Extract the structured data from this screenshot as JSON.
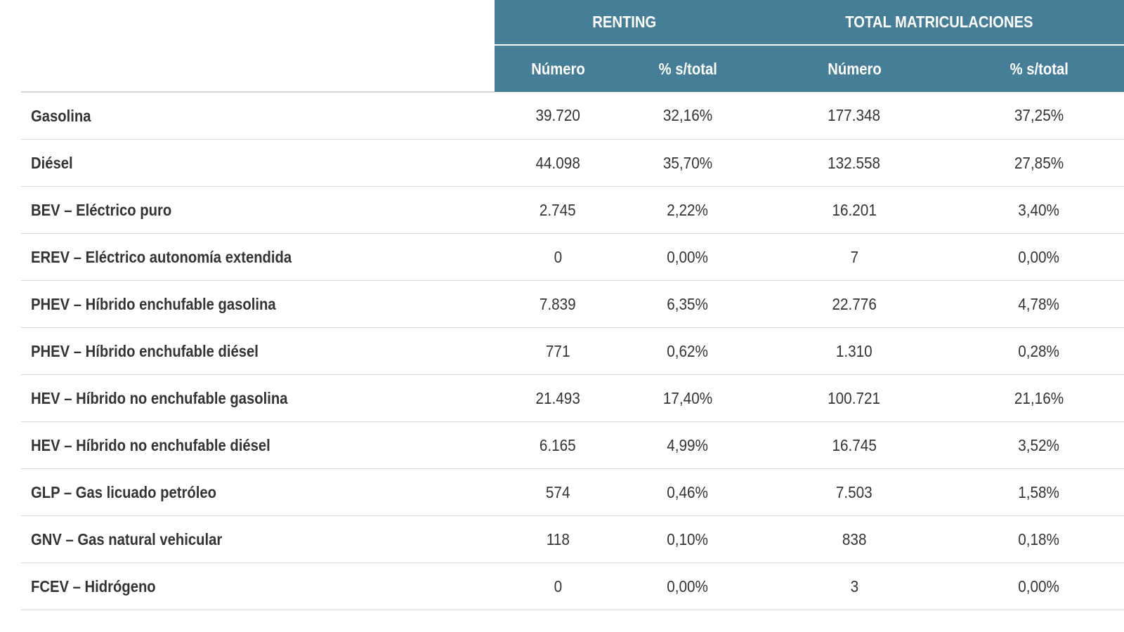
{
  "table": {
    "group_headers": {
      "renting": "RENTING",
      "total": "TOTAL MATRICULACIONES"
    },
    "sub_headers": {
      "renting_number": "Número",
      "renting_pct": "% s/total",
      "total_number": "Número",
      "total_pct": "% s/total"
    },
    "rows": [
      {
        "label": "Gasolina",
        "renting_number": "39.720",
        "renting_pct": "32,16%",
        "total_number": "177.348",
        "total_pct": "37,25%"
      },
      {
        "label": "Diésel",
        "renting_number": "44.098",
        "renting_pct": "35,70%",
        "total_number": "132.558",
        "total_pct": "27,85%"
      },
      {
        "label": "BEV – Eléctrico puro",
        "renting_number": "2.745",
        "renting_pct": "2,22%",
        "total_number": "16.201",
        "total_pct": "3,40%"
      },
      {
        "label": "EREV – Eléctrico autonomía extendida",
        "renting_number": "0",
        "renting_pct": "0,00%",
        "total_number": "7",
        "total_pct": "0,00%"
      },
      {
        "label": "PHEV – Híbrido enchufable gasolina",
        "renting_number": "7.839",
        "renting_pct": "6,35%",
        "total_number": "22.776",
        "total_pct": "4,78%"
      },
      {
        "label": "PHEV – Híbrido enchufable diésel",
        "renting_number": "771",
        "renting_pct": "0,62%",
        "total_number": "1.310",
        "total_pct": "0,28%"
      },
      {
        "label": "HEV – Híbrido no enchufable gasolina",
        "renting_number": "21.493",
        "renting_pct": "17,40%",
        "total_number": "100.721",
        "total_pct": "21,16%"
      },
      {
        "label": "HEV – Híbrido no enchufable diésel",
        "renting_number": "6.165",
        "renting_pct": "4,99%",
        "total_number": "16.745",
        "total_pct": "3,52%"
      },
      {
        "label": "GLP – Gas licuado petróleo",
        "renting_number": "574",
        "renting_pct": "0,46%",
        "total_number": "7.503",
        "total_pct": "1,58%"
      },
      {
        "label": "GNV – Gas natural vehicular",
        "renting_number": "118",
        "renting_pct": "0,10%",
        "total_number": "838",
        "total_pct": "0,18%"
      },
      {
        "label": "FCEV – Hidrógeno",
        "renting_number": "0",
        "renting_pct": "0,00%",
        "total_number": "3",
        "total_pct": "0,00%"
      }
    ]
  },
  "colors": {
    "header_bg": "#467e98",
    "header_text": "#ffffff",
    "row_divider": "#d9d9d9",
    "body_text": "#333333"
  }
}
